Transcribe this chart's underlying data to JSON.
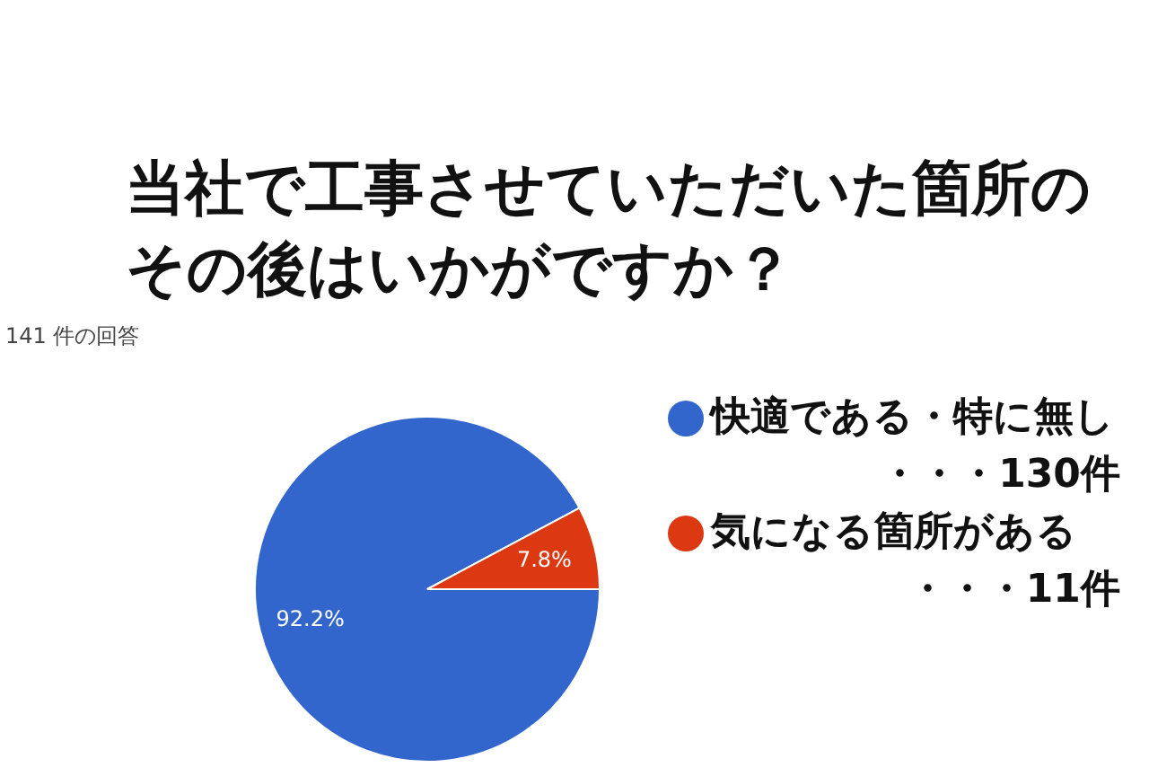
{
  "chart_data": {
    "type": "pie",
    "title": "当社で工事させていただいた箇所のその後はいかがですか？",
    "subtitle": "141 件の回答",
    "categories": [
      "快適である・特に無し・・・130件",
      "気になる箇所がある・・・11件"
    ],
    "values": [
      92.2,
      7.8
    ],
    "colors": [
      "#3366cc",
      "#dc3912"
    ],
    "value_labels": [
      "92.2%",
      "7.8%"
    ],
    "legend": "right"
  }
}
